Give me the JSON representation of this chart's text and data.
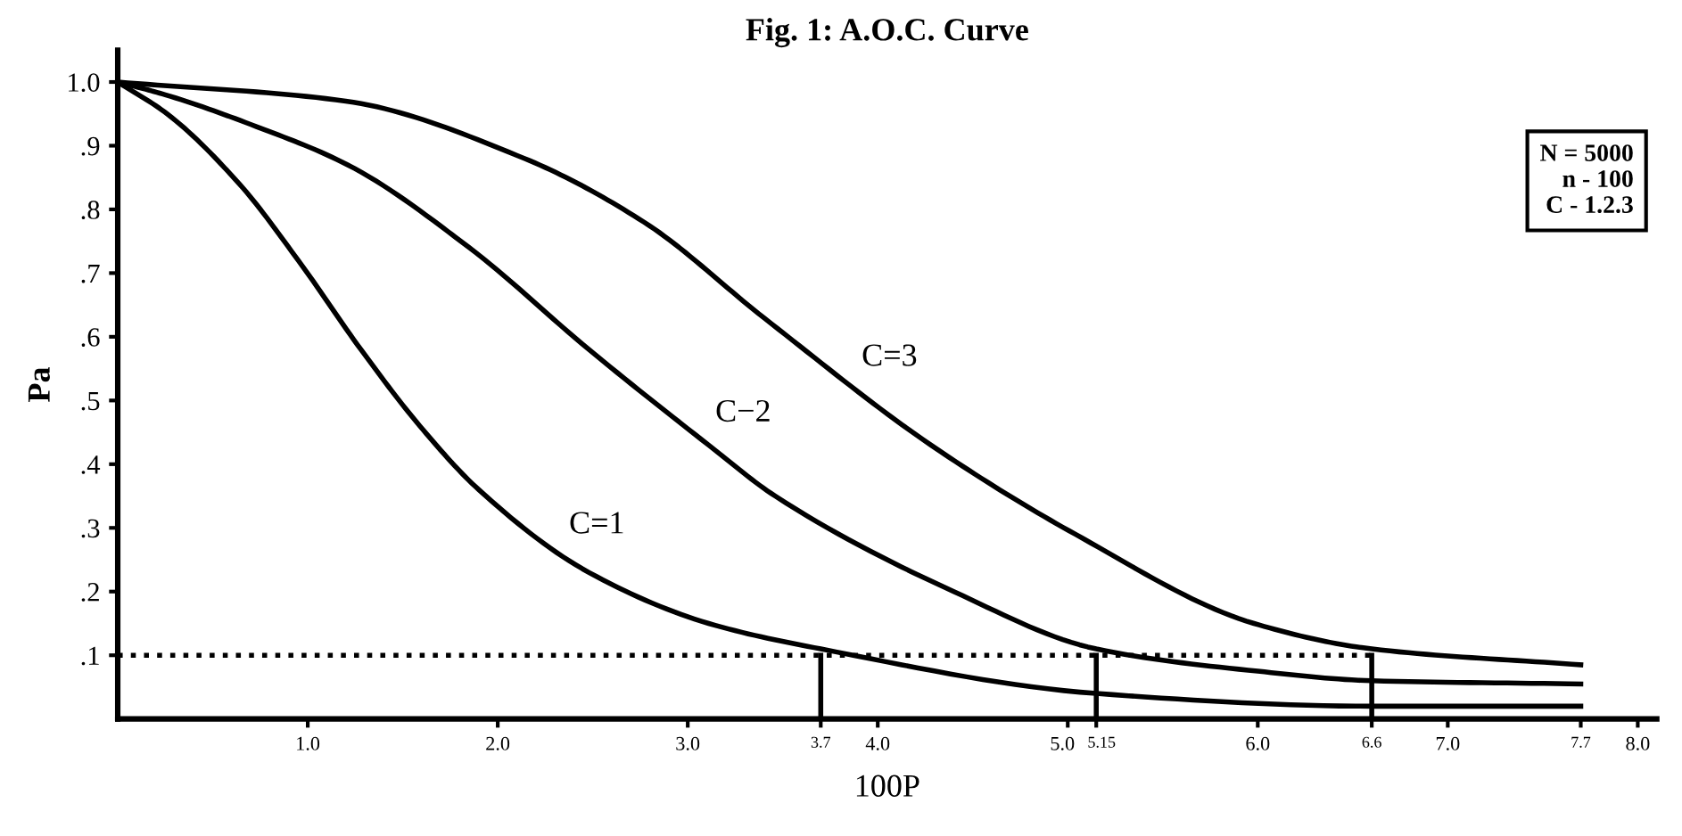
{
  "chart_data": {
    "type": "line",
    "title": "Fig. 1: A.O.C. Curve",
    "xlabel": "100P",
    "ylabel": "Pa",
    "xlim": [
      0,
      8.1
    ],
    "ylim": [
      0,
      1.05
    ],
    "xticks": [
      {
        "value": 1,
        "label": "1.0"
      },
      {
        "value": 2,
        "label": "2.0"
      },
      {
        "value": 3,
        "label": "3.0"
      },
      3.7,
      {
        "value": 4,
        "label": "4.0"
      },
      {
        "value": 5,
        "label": "5.0"
      },
      5.15,
      {
        "value": 6,
        "label": "6.0"
      },
      6.6,
      {
        "value": 7,
        "label": "7.0"
      },
      7.7,
      {
        "value": 8,
        "label": "8.0"
      }
    ],
    "yticks": [
      {
        "value": 0.1,
        "label": ".1"
      },
      {
        "value": 0.2,
        "label": ".2"
      },
      {
        "value": 0.3,
        "label": ".3"
      },
      {
        "value": 0.4,
        "label": ".4"
      },
      {
        "value": 0.5,
        "label": ".5"
      },
      {
        "value": 0.6,
        "label": ".6"
      },
      {
        "value": 0.7,
        "label": ".7"
      },
      {
        "value": 0.8,
        "label": ".8"
      },
      {
        "value": 0.9,
        "label": ".9"
      },
      {
        "value": 1.0,
        "label": "1.0"
      }
    ],
    "grid": false,
    "marker": "none",
    "line_style": "solid",
    "series": [
      {
        "name": "C=1",
        "color": "#000000",
        "x": [
          0,
          0.26,
          0.64,
          0.95,
          1.28,
          1.59,
          1.9,
          2.48,
          3.11,
          3.7,
          5.15,
          6.6,
          7.7
        ],
        "values": [
          1.0,
          0.95,
          0.84,
          0.72,
          0.58,
          0.46,
          0.36,
          0.23,
          0.15,
          0.11,
          0.04,
          0.02,
          0.02
        ]
      },
      {
        "name": "C−2",
        "color": "#000000",
        "x": [
          0,
          0.25,
          0.73,
          1.21,
          1.85,
          2.48,
          3.11,
          3.46,
          4.4,
          5.15,
          6.0,
          6.6,
          7.7
        ],
        "values": [
          1.0,
          0.98,
          0.93,
          0.87,
          0.74,
          0.58,
          0.43,
          0.35,
          0.2,
          0.11,
          0.075,
          0.06,
          0.055
        ]
      },
      {
        "name": "C=3",
        "color": "#000000",
        "x": [
          0,
          1.2,
          2.14,
          2.77,
          3.4,
          4.28,
          5.04,
          5.98,
          6.6,
          7.7
        ],
        "values": [
          1.0,
          0.97,
          0.88,
          0.78,
          0.63,
          0.43,
          0.29,
          0.15,
          0.11,
          0.085
        ]
      },
      {
        "color": "#000000",
        "x": [
          0,
          6.6
        ],
        "values": [
          0.1,
          0.1
        ],
        "line_style": "dotted"
      },
      {
        "color": "#000000",
        "x": [
          3.7,
          3.7
        ],
        "values": [
          0,
          0.1
        ]
      },
      {
        "color": "#000000",
        "x": [
          5.15,
          5.15
        ],
        "values": [
          0,
          0.1
        ]
      },
      {
        "color": "#000000",
        "x": [
          6.6,
          6.6
        ],
        "values": [
          0,
          0.1
        ]
      }
    ],
    "annotations": [
      "N = 5000\nn - 100\nC - 1.2.3"
    ]
  }
}
